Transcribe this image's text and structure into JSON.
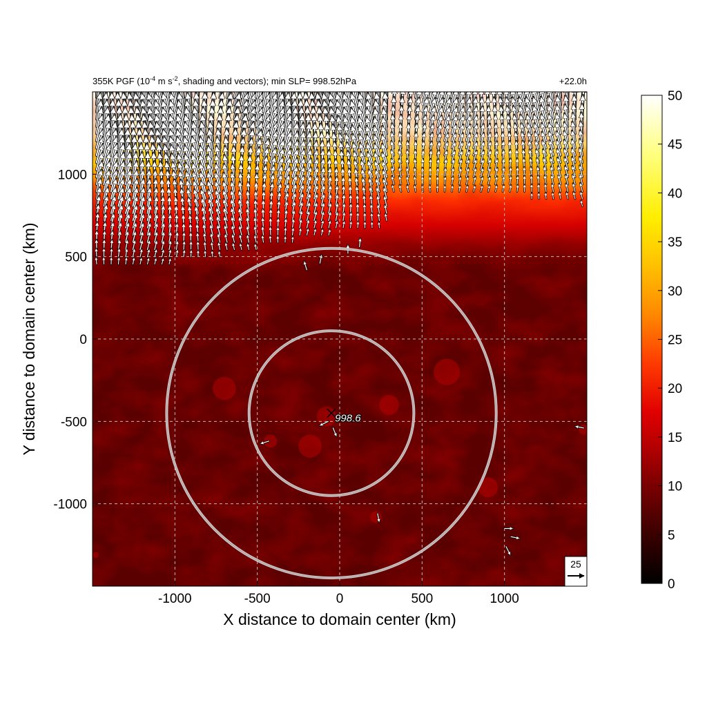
{
  "chart_data": {
    "type": "heatmap",
    "title_left_pre": "355K PGF (10",
    "title_left_sup1": "-4",
    "title_left_mid": " m s",
    "title_left_sup2": "-2",
    "title_left_post": ", shading and vectors); min SLP= 998.52hPa",
    "title_right": "+22.0h",
    "xlabel": "X distance to domain center (km)",
    "ylabel": "Y distance to domain center (km)",
    "xlim": [
      -1500,
      1500
    ],
    "ylim": [
      -1500,
      1500
    ],
    "xticks": [
      -1000,
      -500,
      0,
      500,
      1000
    ],
    "yticks": [
      -1000,
      -500,
      0,
      500,
      1000
    ],
    "grid": "dashed",
    "colorbar": {
      "min": 0,
      "max": 50,
      "ticks": [
        0,
        5,
        10,
        15,
        20,
        25,
        30,
        35,
        40,
        45,
        50
      ],
      "colormap": [
        "#000000",
        "#3a0000",
        "#7a0000",
        "#b40000",
        "#e00000",
        "#ff3a00",
        "#ff8800",
        "#ffc000",
        "#ffee00",
        "#ffff80",
        "#ffffff"
      ]
    },
    "center_marker": {
      "x": -50,
      "y": -450,
      "label": "998.6"
    },
    "radius_circles_km": [
      500,
      1000
    ],
    "reference_vector": {
      "label": "25",
      "magnitude": 25
    },
    "field_summary": {
      "northern_band_high_gradient_above_y_km": 600,
      "peak_value_north": 50,
      "background_value_south": 7
    }
  }
}
